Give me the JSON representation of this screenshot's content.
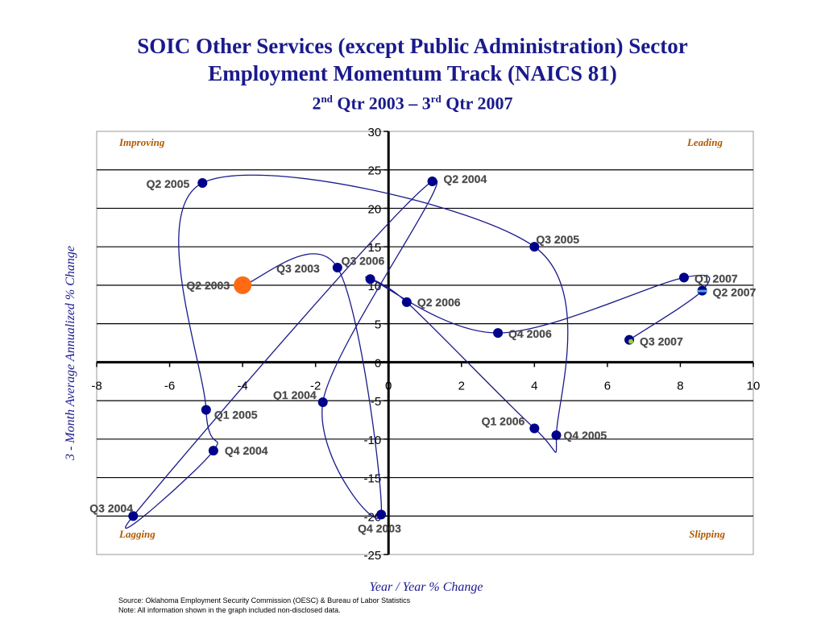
{
  "title": {
    "line1": "SOIC Other Services (except Public Administration) Sector",
    "line2": "Employment Momentum Track (NAICS 81)",
    "sub_a": "2",
    "sub_a_sup": "nd",
    "sub_b": " Qtr 2003 – 3",
    "sub_b_sup": "rd",
    "sub_c": " Qtr 2007"
  },
  "footnotes": {
    "source": "Source:  Oklahoma Employment Security Commission (OESC) & Bureau of Labor Statistics",
    "note": "Note: All information shown in the graph included non-disclosed data."
  },
  "colors": {
    "title": "#1a1a8c",
    "point": "#00008b",
    "line": "#1a1a8c",
    "quadrant_label": "#b05a00",
    "axis_label": "#1a1a8c",
    "start_point": "#ff6a13",
    "end_point_fill": "#9acd32",
    "q2_2007_accent": "#4fa8e0"
  },
  "chart_data": {
    "type": "scatter",
    "title": "SOIC Other Services (except Public Administration) Sector Employment Momentum Track (NAICS 81)",
    "subtitle": "2nd Qtr 2003 – 3rd Qtr 2007",
    "xlabel": "Year / Year % Change",
    "ylabel": "3 - Month Average Annualized % Change",
    "xlim": [
      -8,
      10
    ],
    "ylim": [
      -25,
      30
    ],
    "x_ticks": [
      "-8",
      "-6",
      "-4",
      "-2",
      "0",
      "2",
      "4",
      "6",
      "8",
      "10"
    ],
    "y_ticks": [
      "30",
      "25",
      "20",
      "15",
      "10",
      "5",
      "0",
      "-5",
      "-10",
      "-15",
      "-20",
      "-25"
    ],
    "grid": "horizontal",
    "quadrants": {
      "top_left": "Improving",
      "top_right": "Leading",
      "bottom_left": "Lagging",
      "bottom_right": "Slipping"
    },
    "points": [
      {
        "label": "Q2 2003",
        "x": -4.0,
        "y": 10.0
      },
      {
        "label": "Q3 2003",
        "x": -1.4,
        "y": 12.3
      },
      {
        "label": "Q4 2003",
        "x": -0.2,
        "y": -19.8
      },
      {
        "label": "Q1 2004",
        "x": -1.8,
        "y": -5.2
      },
      {
        "label": "Q2 2004",
        "x": 1.2,
        "y": 23.5
      },
      {
        "label": "Q3 2004",
        "x": -7.0,
        "y": -20.0
      },
      {
        "label": "Q4 2004",
        "x": -4.8,
        "y": -11.5
      },
      {
        "label": "Q1 2005",
        "x": -5.0,
        "y": -6.2
      },
      {
        "label": "Q2 2005",
        "x": -5.1,
        "y": 23.3
      },
      {
        "label": "Q3 2005",
        "x": 4.0,
        "y": 15.0
      },
      {
        "label": "Q4 2005",
        "x": 4.6,
        "y": -9.5
      },
      {
        "label": "Q1 2006",
        "x": 4.0,
        "y": -8.6
      },
      {
        "label": "Q2 2006",
        "x": 0.5,
        "y": 7.8
      },
      {
        "label": "Q3 2006",
        "x": -0.5,
        "y": 10.8
      },
      {
        "label": "Q4 2006",
        "x": 3.0,
        "y": 3.8
      },
      {
        "label": "Q1 2007",
        "x": 8.1,
        "y": 11.0
      },
      {
        "label": "Q2 2007",
        "x": 8.6,
        "y": 9.3
      },
      {
        "label": "Q3 2007",
        "x": 6.6,
        "y": 2.9
      }
    ]
  }
}
